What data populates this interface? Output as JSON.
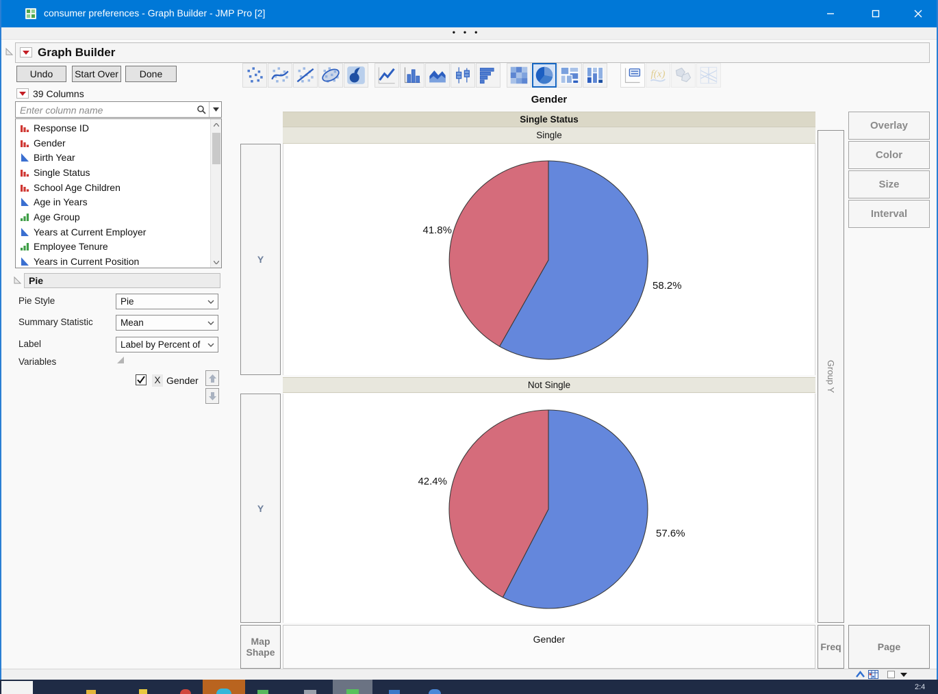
{
  "window": {
    "title": "consumer preferences - Graph Builder - JMP Pro [2]",
    "overflow_dots": "•••",
    "clock": "2:4"
  },
  "report_header": {
    "title": "Graph Builder"
  },
  "action_buttons": {
    "undo": "Undo",
    "start_over": "Start Over",
    "done": "Done"
  },
  "toolbar": {
    "groups": [
      [
        "points",
        "smoother",
        "line-of-fit",
        "ellipse",
        "contour-density"
      ],
      [
        "line",
        "bar",
        "area",
        "box-plot",
        "histogram"
      ],
      [
        "heatmap",
        "pie",
        "treemap",
        "mosaic"
      ],
      [
        "caption-box",
        "formula",
        "map-shapes",
        "parallel-plot"
      ]
    ],
    "selected": "pie",
    "disabled": [
      "formula",
      "map-shapes",
      "parallel-plot"
    ]
  },
  "columns_panel": {
    "count_label": "39 Columns",
    "search_placeholder": "Enter column name",
    "items": [
      {
        "label": "Response ID",
        "type": "nominal"
      },
      {
        "label": "Gender",
        "type": "nominal"
      },
      {
        "label": "Birth Year",
        "type": "continuous"
      },
      {
        "label": "Single Status",
        "type": "nominal"
      },
      {
        "label": "School Age Children",
        "type": "nominal"
      },
      {
        "label": "Age in Years",
        "type": "continuous"
      },
      {
        "label": "Age Group",
        "type": "ordinal"
      },
      {
        "label": "Years at Current Employer",
        "type": "continuous"
      },
      {
        "label": "Employee Tenure",
        "type": "ordinal"
      },
      {
        "label": "Years in Current Position",
        "type": "continuous"
      }
    ]
  },
  "pie_panel": {
    "title": "Pie",
    "pie_style_label": "Pie Style",
    "pie_style_value": "Pie",
    "summary_statistic_label": "Summary Statistic",
    "summary_statistic_value": "Mean",
    "label_label": "Label",
    "label_value": "Label by Percent of",
    "variables_label": "Variables",
    "variable_role": "X",
    "variable_name": "Gender",
    "variable_checked": true
  },
  "graph": {
    "title": "Gender",
    "group_column_header": "Single Status",
    "x_axis_label": "Gender",
    "panels": [
      {
        "name": "Single",
        "left_label": "41.8%",
        "right_label": "58.2%"
      },
      {
        "name": "Not Single",
        "left_label": "42.4%",
        "right_label": "57.6%"
      }
    ]
  },
  "drop_zones": {
    "y": "Y",
    "map_shape": "Map Shape",
    "freq": "Freq",
    "page": "Page",
    "group_y": "Group Y",
    "right_buttons": [
      "Overlay",
      "Color",
      "Size",
      "Interval"
    ]
  },
  "chart_data": [
    {
      "type": "pie",
      "title": "Gender",
      "facet": "Single Status = Single",
      "direction": "clockwise",
      "start_angle_deg": 0,
      "legend": false,
      "slices": [
        {
          "label": "58.2%",
          "value": 58.2,
          "color": "#6487DC"
        },
        {
          "label": "41.8%",
          "value": 41.8,
          "color": "#D56C7B"
        }
      ]
    },
    {
      "type": "pie",
      "title": "Gender",
      "facet": "Single Status = Not Single",
      "direction": "clockwise",
      "start_angle_deg": 0,
      "legend": false,
      "slices": [
        {
          "label": "57.6%",
          "value": 57.6,
          "color": "#6487DC"
        },
        {
          "label": "42.4%",
          "value": 42.4,
          "color": "#D56C7B"
        }
      ]
    }
  ],
  "colors": {
    "titlebar": "#0078D7",
    "pie_blue": "#6487DC",
    "pie_red": "#D56C7B",
    "group_band_dark": "#DBD8C7",
    "group_band_light": "#E8E7DD"
  }
}
